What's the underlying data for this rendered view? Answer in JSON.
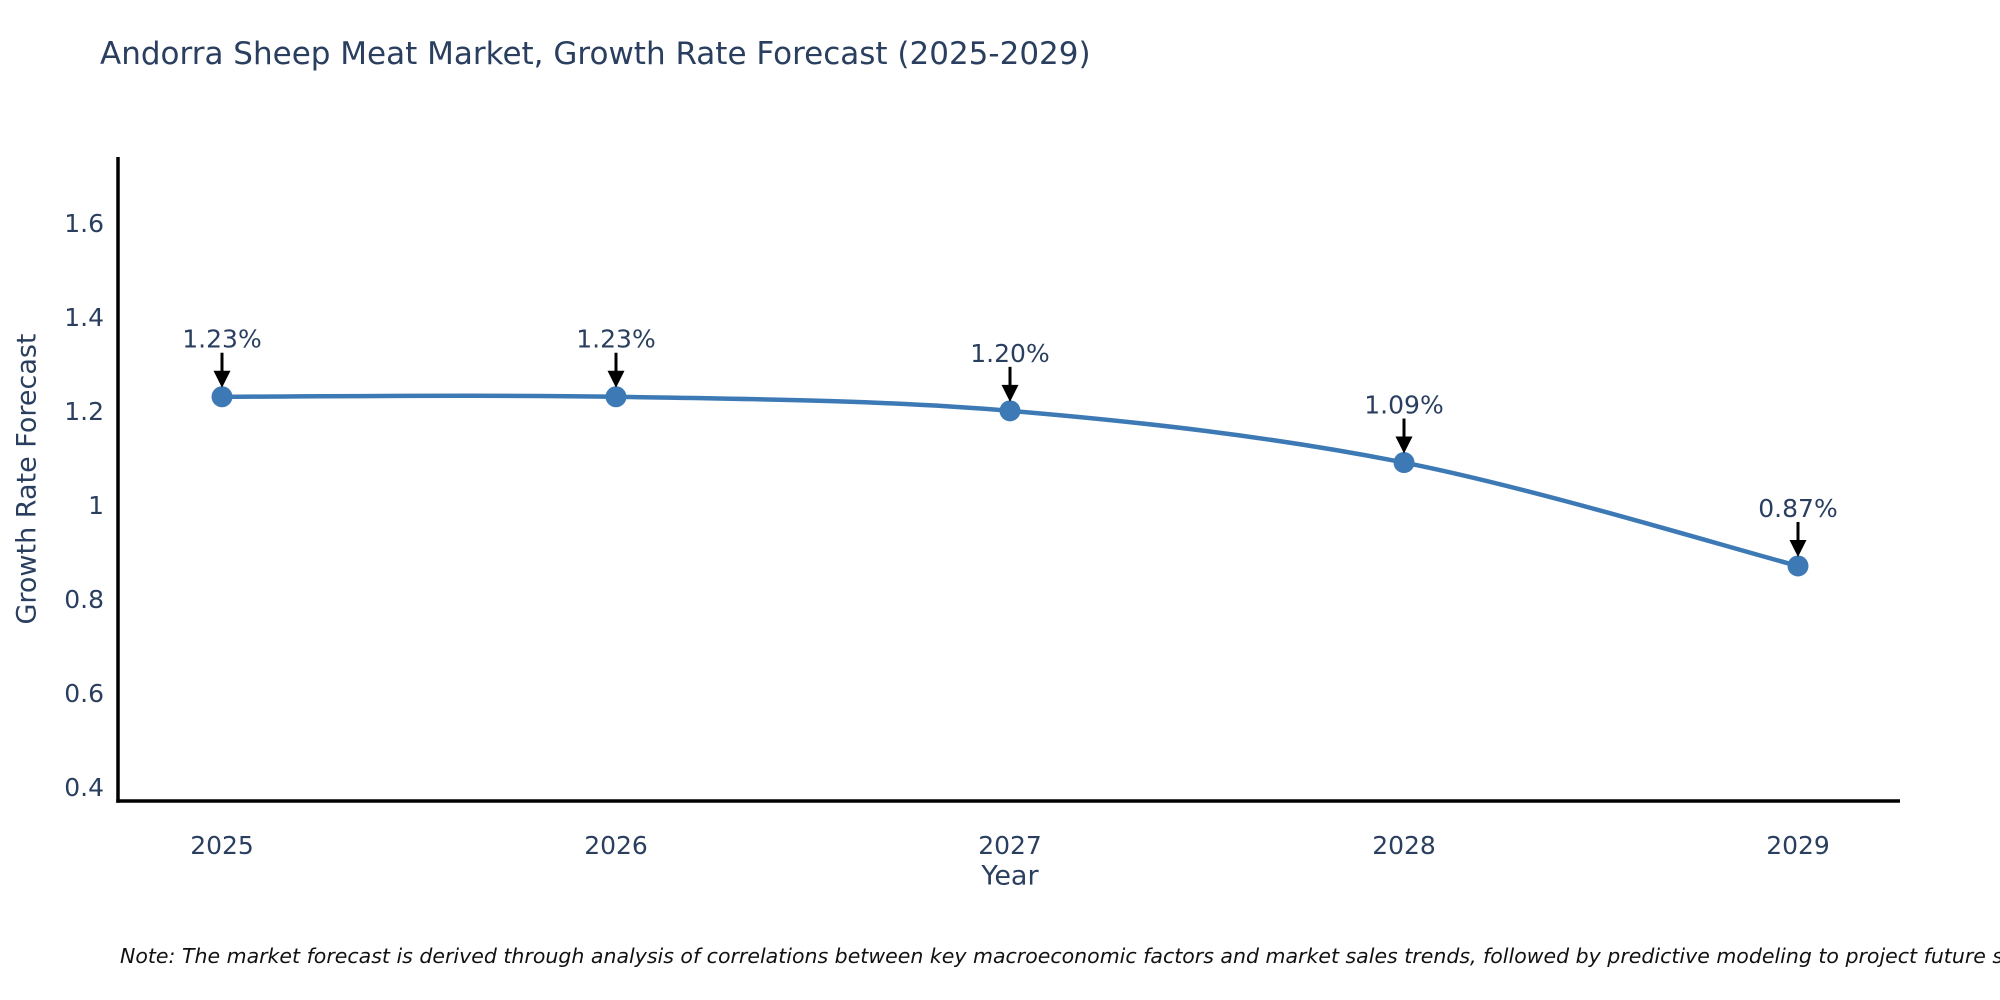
{
  "chart_data": {
    "type": "line",
    "title": "Andorra Sheep Meat Market, Growth Rate Forecast (2025-2029)",
    "xlabel": "Year",
    "ylabel": "Growth Rate Forecast",
    "categories": [
      "2025",
      "2026",
      "2027",
      "2028",
      "2029"
    ],
    "x": [
      2025,
      2026,
      2027,
      2028,
      2029
    ],
    "values": [
      1.23,
      1.23,
      1.2,
      1.09,
      0.87
    ],
    "point_labels": [
      "1.23%",
      "1.23%",
      "1.20%",
      "1.09%",
      "0.87%"
    ],
    "line_shape": "spline",
    "grid": false,
    "legend_position": "none",
    "ylim": [
      0.37,
      1.74
    ],
    "yticks": {
      "values": [
        0.4,
        0.6,
        0.8,
        1.0,
        1.2,
        1.4,
        1.6
      ],
      "labels": [
        "0.4",
        "0.6",
        "0.8",
        "1",
        "1.2",
        "1.4",
        "1.6"
      ]
    },
    "colors": {
      "line": "#3d7ab5",
      "marker": "#3d7ab5",
      "axis_line": "#000000",
      "title_text": "#2a3f5f",
      "tick_text": "#2a3f5f",
      "annotation_text": "#2a3f5f",
      "annotation_arrow": "#000000"
    }
  },
  "note": {
    "text": "Note: The market forecast is derived through analysis of correlations between key macroeconomic factors and market sales trends, followed by predictive modeling to project future sales"
  }
}
